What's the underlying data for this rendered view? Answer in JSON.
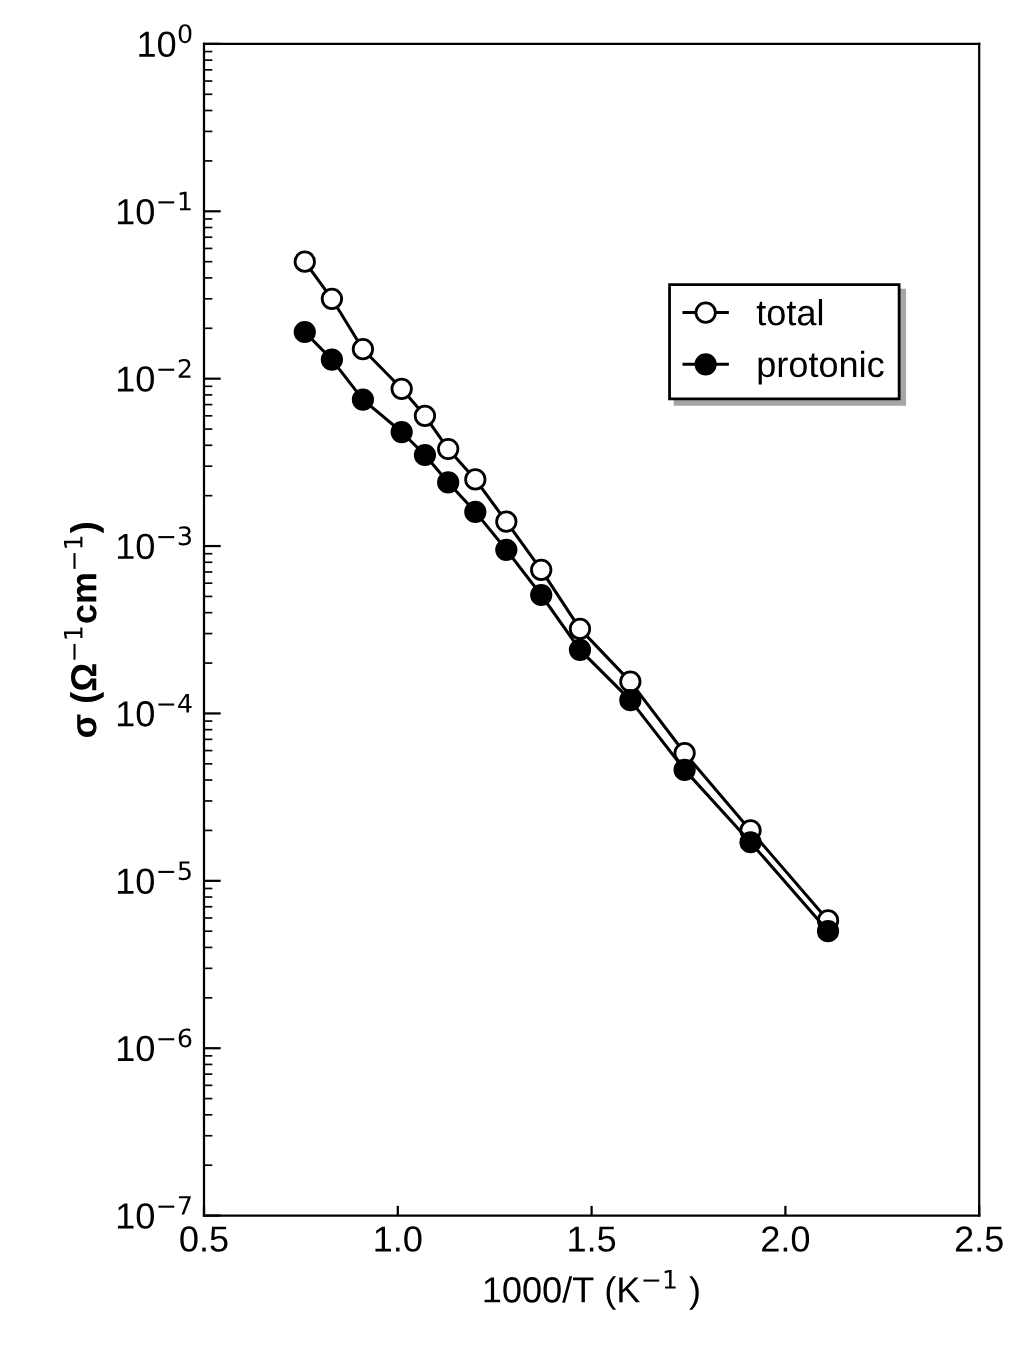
{
  "chart_data": {
    "type": "line",
    "xlabel": "1000/T (K$^{−1}$ )",
    "ylabel": "σ (Ω$^{−1}$cm$^{−1}$)",
    "log": "y",
    "xlim": [
      0.5,
      2.5
    ],
    "xticks": [
      {
        "value": 0.5,
        "label": "0.5"
      },
      {
        "value": 1.0,
        "label": "1.0"
      },
      {
        "value": 1.5,
        "label": "1.5"
      },
      {
        "value": 2.0,
        "label": "2.0"
      },
      {
        "value": 2.5,
        "label": "2.5"
      }
    ],
    "ylim": [
      1e-07,
      1
    ],
    "yticks": [
      {
        "value": 1,
        "label": "10$^{0}$"
      },
      {
        "value": 0.1,
        "label": "10$^{−1}$"
      },
      {
        "value": 0.01,
        "label": "10$^{−2}$"
      },
      {
        "value": 0.001,
        "label": "10$^{−3}$"
      },
      {
        "value": 0.0001,
        "label": "10$^{−4}$"
      },
      {
        "value": 1e-05,
        "label": "10$^{−5}$"
      },
      {
        "value": 1e-06,
        "label": "10$^{−6}$"
      },
      {
        "value": 1e-07,
        "label": "10$^{−7}$"
      }
    ],
    "grid": false,
    "legend": "top right",
    "marker": "circle",
    "line_style": "solid",
    "series": [
      {
        "name": "total",
        "color": "#ffffff",
        "x": [
          0.76,
          0.83,
          0.91,
          1.01,
          1.07,
          1.13,
          1.2,
          1.28,
          1.37,
          1.47,
          1.6,
          1.74,
          1.91,
          2.11
        ],
        "values": [
          0.05,
          0.03,
          0.015,
          0.0087,
          0.006,
          0.0038,
          0.0025,
          0.0014,
          0.00072,
          0.00032,
          0.000155,
          5.8e-05,
          2e-05,
          5.8e-06
        ]
      },
      {
        "name": "protonic",
        "color": "#000000",
        "x": [
          0.76,
          0.83,
          0.91,
          1.01,
          1.07,
          1.13,
          1.2,
          1.28,
          1.37,
          1.47,
          1.6,
          1.74,
          1.91,
          2.11
        ],
        "values": [
          0.019,
          0.013,
          0.0075,
          0.0048,
          0.0035,
          0.0024,
          0.0016,
          0.00095,
          0.00051,
          0.00024,
          0.00012,
          4.6e-05,
          1.7e-05,
          5e-06
        ]
      }
    ]
  }
}
